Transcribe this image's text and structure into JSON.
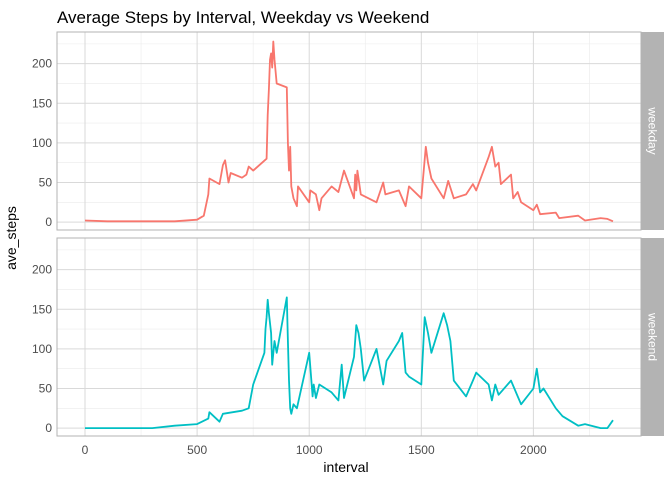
{
  "chart_data": {
    "type": "line",
    "title": "Average Steps by Interval, Weekday vs Weekend",
    "xlabel": "interval",
    "ylabel": "ave_steps",
    "xlim": [
      -125,
      2480
    ],
    "ylim": [
      -10,
      240
    ],
    "x_ticks": [
      0,
      500,
      1000,
      1500,
      2000
    ],
    "y_ticks": [
      0,
      50,
      100,
      150,
      200
    ],
    "grid": true,
    "legend": "none",
    "facet": "rows",
    "panels": [
      {
        "strip_label": "weekday",
        "color": "#F8766D",
        "x": [
          0,
          100,
          200,
          300,
          400,
          500,
          530,
          550,
          555,
          600,
          615,
          625,
          640,
          650,
          700,
          720,
          730,
          750,
          810,
          815,
          820,
          825,
          830,
          835,
          840,
          845,
          850,
          855,
          900,
          905,
          910,
          915,
          920,
          930,
          945,
          950,
          1000,
          1005,
          1030,
          1045,
          1055,
          1100,
          1130,
          1155,
          1200,
          1205,
          1210,
          1215,
          1230,
          1300,
          1330,
          1340,
          1400,
          1430,
          1445,
          1500,
          1520,
          1530,
          1545,
          1600,
          1620,
          1645,
          1700,
          1730,
          1745,
          1800,
          1815,
          1830,
          1845,
          1855,
          1900,
          1910,
          1930,
          1945,
          2000,
          2015,
          2030,
          2100,
          2115,
          2200,
          2230,
          2300,
          2330,
          2355
        ],
        "y": [
          2,
          1,
          1,
          1,
          1,
          3,
          8,
          35,
          55,
          48,
          72,
          78,
          50,
          62,
          56,
          60,
          70,
          65,
          80,
          135,
          168,
          205,
          213,
          195,
          228,
          205,
          190,
          175,
          170,
          100,
          65,
          95,
          45,
          30,
          20,
          45,
          25,
          40,
          35,
          15,
          30,
          45,
          38,
          65,
          30,
          60,
          40,
          65,
          35,
          25,
          50,
          35,
          40,
          20,
          45,
          30,
          95,
          75,
          55,
          30,
          52,
          30,
          35,
          48,
          40,
          82,
          95,
          70,
          75,
          48,
          60,
          30,
          38,
          25,
          15,
          22,
          10,
          12,
          5,
          8,
          2,
          5,
          4,
          1
        ]
      },
      {
        "strip_label": "weekend",
        "color": "#00BFC4",
        "x": [
          0,
          100,
          200,
          300,
          400,
          500,
          550,
          555,
          600,
          615,
          700,
          730,
          750,
          800,
          805,
          810,
          815,
          820,
          830,
          835,
          845,
          855,
          900,
          905,
          910,
          915,
          920,
          930,
          945,
          1000,
          1015,
          1020,
          1030,
          1045,
          1100,
          1130,
          1145,
          1155,
          1200,
          1210,
          1220,
          1230,
          1245,
          1300,
          1330,
          1345,
          1400,
          1415,
          1430,
          1445,
          1500,
          1515,
          1530,
          1545,
          1600,
          1615,
          1630,
          1645,
          1700,
          1730,
          1745,
          1800,
          1815,
          1830,
          1845,
          1900,
          1930,
          1945,
          2000,
          2015,
          2030,
          2045,
          2100,
          2130,
          2200,
          2230,
          2300,
          2330,
          2355
        ],
        "y": [
          0,
          0,
          0,
          0,
          3,
          5,
          12,
          20,
          8,
          18,
          22,
          25,
          55,
          95,
          125,
          140,
          162,
          145,
          120,
          80,
          110,
          95,
          165,
          110,
          60,
          25,
          18,
          30,
          25,
          95,
          40,
          55,
          38,
          55,
          45,
          35,
          80,
          38,
          90,
          130,
          120,
          100,
          60,
          100,
          55,
          85,
          110,
          120,
          70,
          65,
          55,
          140,
          120,
          95,
          145,
          130,
          110,
          60,
          40,
          60,
          70,
          55,
          35,
          55,
          42,
          60,
          40,
          30,
          50,
          75,
          45,
          50,
          25,
          15,
          3,
          5,
          0,
          0,
          10
        ]
      }
    ]
  }
}
